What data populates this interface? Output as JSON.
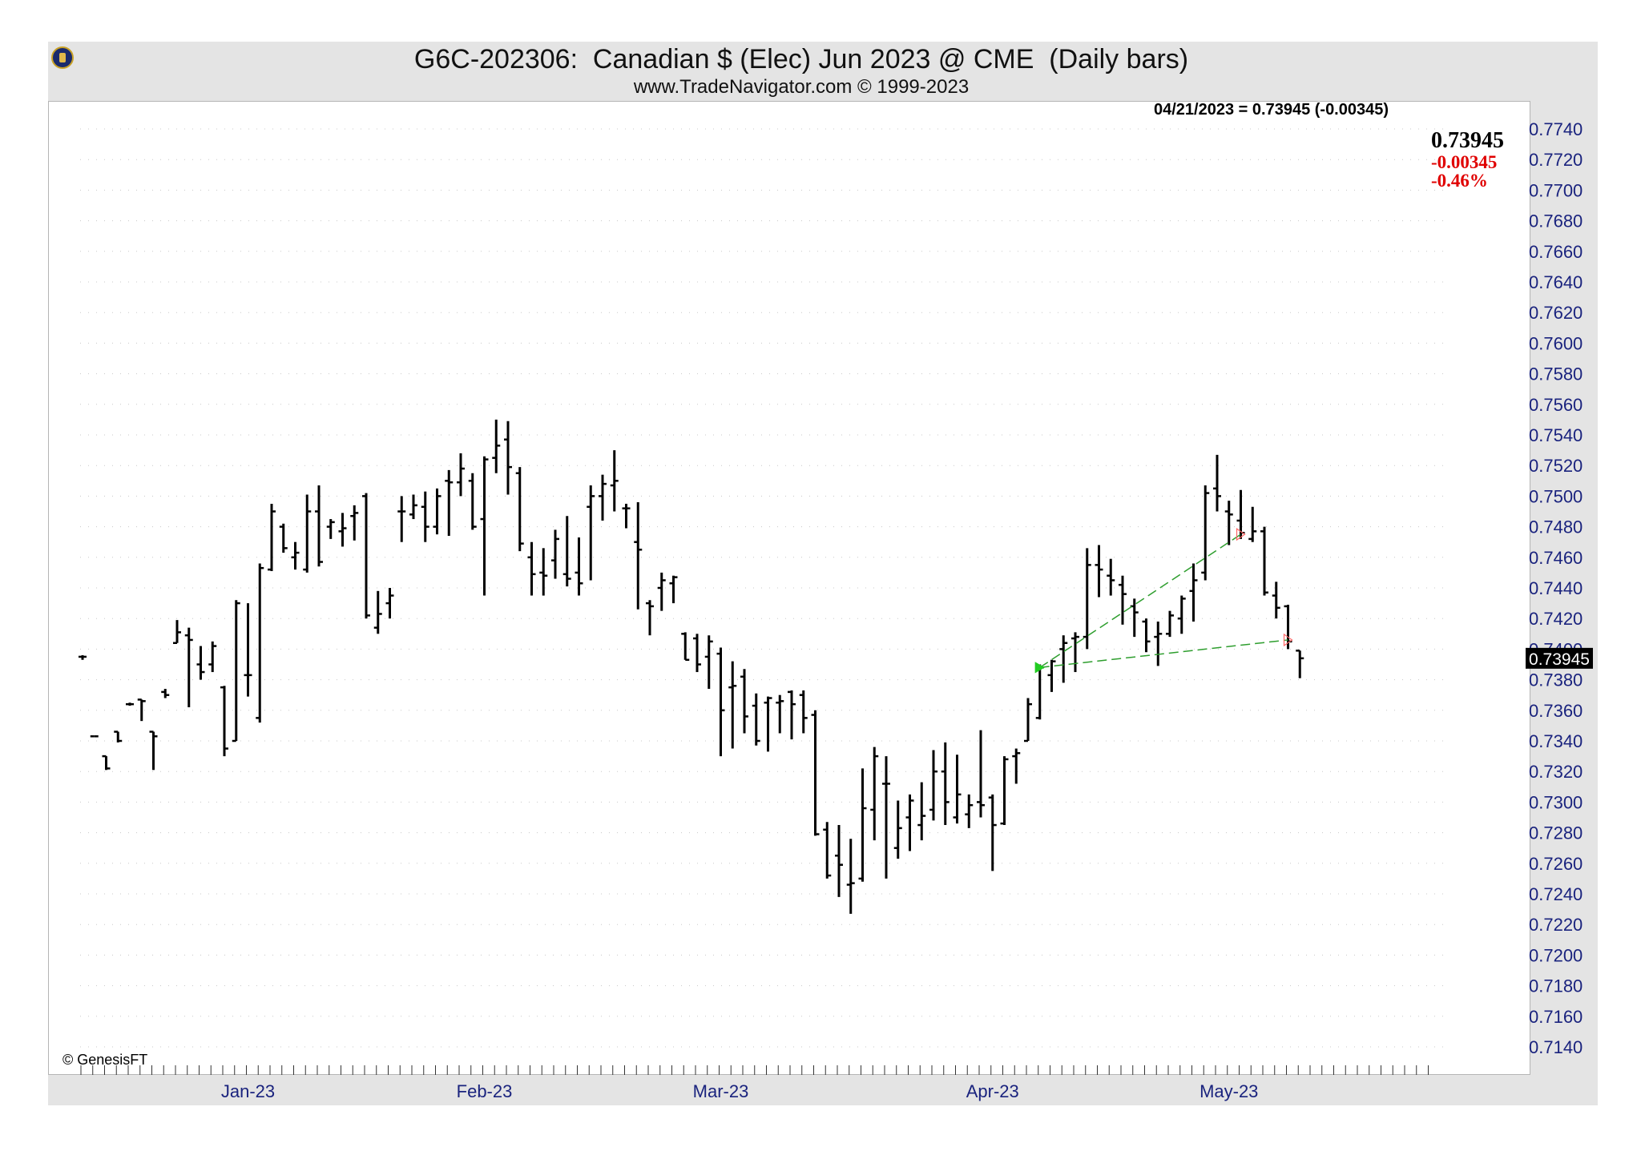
{
  "header": {
    "title": "G6C-202306:  Canadian $ (Elec) Jun 2023 @ CME  (Daily bars)",
    "subtitle": "www.TradeNavigator.com © 1999-2023"
  },
  "readout": {
    "line": "04/21/2023 = 0.73945 (-0.00345)",
    "last": "0.73945",
    "change": "-0.00345",
    "change_pct": "-0.46%"
  },
  "copyright": "© GenesisFT",
  "colors": {
    "bars": "#000000",
    "axis_text": "#1a237e",
    "trendline": "#2e9e2e",
    "change_negative": "#e00000",
    "frame": "#e4e4e4"
  },
  "chart_data": {
    "type": "ohlc",
    "ylim": [
      0.713,
      0.775
    ],
    "y_ticks": [
      "0.7740",
      "0.7720",
      "0.7700",
      "0.7680",
      "0.7660",
      "0.7640",
      "0.7620",
      "0.7600",
      "0.7580",
      "0.7560",
      "0.7540",
      "0.7520",
      "0.7500",
      "0.7480",
      "0.7460",
      "0.7440",
      "0.7420",
      "0.7400",
      "0.7380",
      "0.7360",
      "0.7340",
      "0.7320",
      "0.7300",
      "0.7280",
      "0.7260",
      "0.7240",
      "0.7220",
      "0.7200",
      "0.7180",
      "0.7160",
      "0.7140"
    ],
    "y_tick_values": [
      0.774,
      0.772,
      0.77,
      0.768,
      0.766,
      0.764,
      0.762,
      0.76,
      0.758,
      0.756,
      0.754,
      0.752,
      0.75,
      0.748,
      0.746,
      0.744,
      0.742,
      0.74,
      0.738,
      0.736,
      0.734,
      0.732,
      0.73,
      0.728,
      0.726,
      0.724,
      0.722,
      0.72,
      0.718,
      0.716,
      0.714
    ],
    "x_labels": [
      {
        "label": "Jan-23",
        "index": 14
      },
      {
        "label": "Feb-23",
        "index": 34
      },
      {
        "label": "Mar-23",
        "index": 54
      },
      {
        "label": "Apr-23",
        "index": 77
      },
      {
        "label": "May-23",
        "index": 97
      }
    ],
    "x_count": 115,
    "last_value_label": "0.73945",
    "bars": [
      {
        "i": 0,
        "o": 0.7395,
        "h": 0.7396,
        "l": 0.7393,
        "c": 0.7395
      },
      {
        "i": 1,
        "o": 0.7343,
        "h": 0.7343,
        "l": 0.7343,
        "c": 0.7343
      },
      {
        "i": 2,
        "o": 0.733,
        "h": 0.733,
        "l": 0.7321,
        "c": 0.7322
      },
      {
        "i": 3,
        "o": 0.7346,
        "h": 0.7346,
        "l": 0.7339,
        "c": 0.734
      },
      {
        "i": 4,
        "o": 0.7364,
        "h": 0.7365,
        "l": 0.7363,
        "c": 0.7364
      },
      {
        "i": 5,
        "o": 0.7367,
        "h": 0.7367,
        "l": 0.7353,
        "c": 0.7366
      },
      {
        "i": 6,
        "o": 0.7346,
        "h": 0.7346,
        "l": 0.7321,
        "c": 0.7343
      },
      {
        "i": 7,
        "o": 0.7372,
        "h": 0.7374,
        "l": 0.7368,
        "c": 0.737
      },
      {
        "i": 8,
        "o": 0.7404,
        "h": 0.7419,
        "l": 0.7404,
        "c": 0.7411
      },
      {
        "i": 9,
        "o": 0.7409,
        "h": 0.7414,
        "l": 0.7362,
        "c": 0.7406
      },
      {
        "i": 10,
        "o": 0.739,
        "h": 0.7402,
        "l": 0.738,
        "c": 0.7385
      },
      {
        "i": 11,
        "o": 0.739,
        "h": 0.7405,
        "l": 0.7385,
        "c": 0.7402
      },
      {
        "i": 12,
        "o": 0.7375,
        "h": 0.7376,
        "l": 0.733,
        "c": 0.7335
      },
      {
        "i": 13,
        "o": 0.734,
        "h": 0.7432,
        "l": 0.734,
        "c": 0.743
      },
      {
        "i": 14,
        "o": 0.7383,
        "h": 0.743,
        "l": 0.7369,
        "c": 0.7383
      },
      {
        "i": 15,
        "o": 0.7355,
        "h": 0.7456,
        "l": 0.7352,
        "c": 0.7453
      },
      {
        "i": 16,
        "o": 0.7452,
        "h": 0.7495,
        "l": 0.7451,
        "c": 0.749
      },
      {
        "i": 17,
        "o": 0.748,
        "h": 0.7482,
        "l": 0.7463,
        "c": 0.7466
      },
      {
        "i": 18,
        "o": 0.746,
        "h": 0.747,
        "l": 0.7452,
        "c": 0.7463
      },
      {
        "i": 19,
        "o": 0.7452,
        "h": 0.7501,
        "l": 0.745,
        "c": 0.749
      },
      {
        "i": 20,
        "o": 0.749,
        "h": 0.7507,
        "l": 0.7454,
        "c": 0.7457
      },
      {
        "i": 21,
        "o": 0.748,
        "h": 0.7485,
        "l": 0.7472,
        "c": 0.7483
      },
      {
        "i": 22,
        "o": 0.7477,
        "h": 0.7489,
        "l": 0.7467,
        "c": 0.7479
      },
      {
        "i": 23,
        "o": 0.7487,
        "h": 0.7494,
        "l": 0.7471,
        "c": 0.7489
      },
      {
        "i": 24,
        "o": 0.75,
        "h": 0.7502,
        "l": 0.742,
        "c": 0.7422
      },
      {
        "i": 25,
        "o": 0.7414,
        "h": 0.7438,
        "l": 0.741,
        "c": 0.7423
      },
      {
        "i": 26,
        "o": 0.743,
        "h": 0.744,
        "l": 0.742,
        "c": 0.7435
      },
      {
        "i": 27,
        "o": 0.749,
        "h": 0.75,
        "l": 0.747,
        "c": 0.749
      },
      {
        "i": 28,
        "o": 0.7488,
        "h": 0.7501,
        "l": 0.7485,
        "c": 0.7494
      },
      {
        "i": 29,
        "o": 0.7493,
        "h": 0.7503,
        "l": 0.747,
        "c": 0.748
      },
      {
        "i": 30,
        "o": 0.748,
        "h": 0.7505,
        "l": 0.7475,
        "c": 0.75
      },
      {
        "i": 31,
        "o": 0.751,
        "h": 0.7517,
        "l": 0.7474,
        "c": 0.7509
      },
      {
        "i": 32,
        "o": 0.7509,
        "h": 0.7528,
        "l": 0.75,
        "c": 0.7518
      },
      {
        "i": 33,
        "o": 0.751,
        "h": 0.7515,
        "l": 0.7478,
        "c": 0.748
      },
      {
        "i": 34,
        "o": 0.7485,
        "h": 0.7526,
        "l": 0.7435,
        "c": 0.7524
      },
      {
        "i": 35,
        "o": 0.7525,
        "h": 0.755,
        "l": 0.7515,
        "c": 0.7533
      },
      {
        "i": 36,
        "o": 0.7537,
        "h": 0.7549,
        "l": 0.7501,
        "c": 0.7519
      },
      {
        "i": 37,
        "o": 0.7515,
        "h": 0.7519,
        "l": 0.7464,
        "c": 0.7469
      },
      {
        "i": 38,
        "o": 0.746,
        "h": 0.747,
        "l": 0.7435,
        "c": 0.7449
      },
      {
        "i": 39,
        "o": 0.745,
        "h": 0.7466,
        "l": 0.7435,
        "c": 0.7448
      },
      {
        "i": 40,
        "o": 0.7458,
        "h": 0.7478,
        "l": 0.7446,
        "c": 0.7472
      },
      {
        "i": 41,
        "o": 0.7449,
        "h": 0.7487,
        "l": 0.7441,
        "c": 0.7446
      },
      {
        "i": 42,
        "o": 0.745,
        "h": 0.7473,
        "l": 0.7435,
        "c": 0.7443
      },
      {
        "i": 43,
        "o": 0.7493,
        "h": 0.7507,
        "l": 0.7445,
        "c": 0.75
      },
      {
        "i": 44,
        "o": 0.75,
        "h": 0.7514,
        "l": 0.7484,
        "c": 0.7508
      },
      {
        "i": 45,
        "o": 0.7507,
        "h": 0.753,
        "l": 0.749,
        "c": 0.751
      },
      {
        "i": 46,
        "o": 0.7492,
        "h": 0.7495,
        "l": 0.7479,
        "c": 0.7492
      },
      {
        "i": 47,
        "o": 0.747,
        "h": 0.7496,
        "l": 0.7426,
        "c": 0.7465
      },
      {
        "i": 48,
        "o": 0.743,
        "h": 0.7432,
        "l": 0.7409,
        "c": 0.7428
      },
      {
        "i": 49,
        "o": 0.744,
        "h": 0.745,
        "l": 0.7425,
        "c": 0.7445
      },
      {
        "i": 50,
        "o": 0.7443,
        "h": 0.7448,
        "l": 0.743,
        "c": 0.7447
      },
      {
        "i": 51,
        "o": 0.741,
        "h": 0.7411,
        "l": 0.7393,
        "c": 0.7393
      },
      {
        "i": 52,
        "o": 0.7407,
        "h": 0.741,
        "l": 0.7385,
        "c": 0.739
      },
      {
        "i": 53,
        "o": 0.7395,
        "h": 0.7409,
        "l": 0.7374,
        "c": 0.7405
      },
      {
        "i": 54,
        "o": 0.7397,
        "h": 0.7401,
        "l": 0.733,
        "c": 0.736
      },
      {
        "i": 55,
        "o": 0.7375,
        "h": 0.7392,
        "l": 0.7335,
        "c": 0.7376
      },
      {
        "i": 56,
        "o": 0.7382,
        "h": 0.7387,
        "l": 0.7345,
        "c": 0.7356
      },
      {
        "i": 57,
        "o": 0.7363,
        "h": 0.7371,
        "l": 0.7337,
        "c": 0.734
      },
      {
        "i": 58,
        "o": 0.7365,
        "h": 0.7369,
        "l": 0.7333,
        "c": 0.7368
      },
      {
        "i": 59,
        "o": 0.7365,
        "h": 0.737,
        "l": 0.7345,
        "c": 0.7366
      },
      {
        "i": 60,
        "o": 0.7372,
        "h": 0.7373,
        "l": 0.7341,
        "c": 0.7364
      },
      {
        "i": 61,
        "o": 0.737,
        "h": 0.7373,
        "l": 0.7345,
        "c": 0.7355
      },
      {
        "i": 62,
        "o": 0.7357,
        "h": 0.736,
        "l": 0.7278,
        "c": 0.7279
      },
      {
        "i": 63,
        "o": 0.7282,
        "h": 0.7287,
        "l": 0.725,
        "c": 0.7252
      },
      {
        "i": 64,
        "o": 0.7265,
        "h": 0.7285,
        "l": 0.7238,
        "c": 0.7259
      },
      {
        "i": 65,
        "o": 0.7246,
        "h": 0.7276,
        "l": 0.7227,
        "c": 0.7247
      },
      {
        "i": 66,
        "o": 0.725,
        "h": 0.7322,
        "l": 0.7248,
        "c": 0.7296
      },
      {
        "i": 67,
        "o": 0.7295,
        "h": 0.7336,
        "l": 0.7275,
        "c": 0.733
      },
      {
        "i": 68,
        "o": 0.7312,
        "h": 0.733,
        "l": 0.725,
        "c": 0.7312
      },
      {
        "i": 69,
        "o": 0.727,
        "h": 0.7301,
        "l": 0.7263,
        "c": 0.7283
      },
      {
        "i": 70,
        "o": 0.729,
        "h": 0.7305,
        "l": 0.7268,
        "c": 0.7301
      },
      {
        "i": 71,
        "o": 0.7285,
        "h": 0.7313,
        "l": 0.7275,
        "c": 0.7291
      },
      {
        "i": 72,
        "o": 0.7295,
        "h": 0.7334,
        "l": 0.7288,
        "c": 0.732
      },
      {
        "i": 73,
        "o": 0.732,
        "h": 0.7339,
        "l": 0.7285,
        "c": 0.73
      },
      {
        "i": 74,
        "o": 0.729,
        "h": 0.7331,
        "l": 0.7286,
        "c": 0.7305
      },
      {
        "i": 75,
        "o": 0.7292,
        "h": 0.7305,
        "l": 0.7283,
        "c": 0.7298
      },
      {
        "i": 76,
        "o": 0.73,
        "h": 0.7347,
        "l": 0.729,
        "c": 0.7298
      },
      {
        "i": 77,
        "o": 0.7303,
        "h": 0.7305,
        "l": 0.7255,
        "c": 0.7285
      },
      {
        "i": 78,
        "o": 0.7286,
        "h": 0.733,
        "l": 0.7285,
        "c": 0.7328
      },
      {
        "i": 79,
        "o": 0.733,
        "h": 0.7335,
        "l": 0.7312,
        "c": 0.7332
      },
      {
        "i": 80,
        "o": 0.734,
        "h": 0.7368,
        "l": 0.734,
        "c": 0.7364
      },
      {
        "i": 81,
        "o": 0.7355,
        "h": 0.739,
        "l": 0.7354,
        "c": 0.7388
      },
      {
        "i": 82,
        "o": 0.7383,
        "h": 0.7393,
        "l": 0.7372,
        "c": 0.7392
      },
      {
        "i": 83,
        "o": 0.74,
        "h": 0.7409,
        "l": 0.7378,
        "c": 0.7404
      },
      {
        "i": 84,
        "o": 0.7407,
        "h": 0.7411,
        "l": 0.7385,
        "c": 0.7408
      },
      {
        "i": 85,
        "o": 0.7408,
        "h": 0.7466,
        "l": 0.74,
        "c": 0.7455
      },
      {
        "i": 86,
        "o": 0.7455,
        "h": 0.7468,
        "l": 0.7434,
        "c": 0.7452
      },
      {
        "i": 87,
        "o": 0.7448,
        "h": 0.7459,
        "l": 0.7435,
        "c": 0.7445
      },
      {
        "i": 88,
        "o": 0.7442,
        "h": 0.7448,
        "l": 0.7416,
        "c": 0.7436
      },
      {
        "i": 89,
        "o": 0.7428,
        "h": 0.7433,
        "l": 0.7408,
        "c": 0.7424
      },
      {
        "i": 90,
        "o": 0.7418,
        "h": 0.742,
        "l": 0.7398,
        "c": 0.7405
      },
      {
        "i": 91,
        "o": 0.7408,
        "h": 0.7418,
        "l": 0.7389,
        "c": 0.741
      },
      {
        "i": 92,
        "o": 0.741,
        "h": 0.7425,
        "l": 0.7408,
        "c": 0.7422
      },
      {
        "i": 93,
        "o": 0.742,
        "h": 0.7435,
        "l": 0.741,
        "c": 0.7433
      },
      {
        "i": 94,
        "o": 0.7438,
        "h": 0.7456,
        "l": 0.7418,
        "c": 0.7445
      },
      {
        "i": 95,
        "o": 0.745,
        "h": 0.7507,
        "l": 0.7445,
        "c": 0.7502
      },
      {
        "i": 96,
        "o": 0.7505,
        "h": 0.7527,
        "l": 0.749,
        "c": 0.75
      },
      {
        "i": 97,
        "o": 0.749,
        "h": 0.7497,
        "l": 0.7468,
        "c": 0.7488
      },
      {
        "i": 98,
        "o": 0.7484,
        "h": 0.7504,
        "l": 0.7472,
        "c": 0.7476
      },
      {
        "i": 99,
        "o": 0.7472,
        "h": 0.7493,
        "l": 0.747,
        "c": 0.7477
      },
      {
        "i": 100,
        "o": 0.7477,
        "h": 0.748,
        "l": 0.7435,
        "c": 0.7437
      },
      {
        "i": 101,
        "o": 0.7435,
        "h": 0.7444,
        "l": 0.742,
        "c": 0.7427
      },
      {
        "i": 102,
        "o": 0.7428,
        "h": 0.7429,
        "l": 0.74,
        "c": 0.7405
      },
      {
        "i": 103,
        "o": 0.7399,
        "h": 0.7399,
        "l": 0.7381,
        "c": 0.7394
      }
    ],
    "trendlines": [
      {
        "from_index": 81,
        "from_value": 0.7388,
        "to_index": 98,
        "to_value": 0.7475
      },
      {
        "from_index": 81,
        "from_value": 0.7388,
        "to_index": 102,
        "to_value": 0.7406
      }
    ]
  }
}
